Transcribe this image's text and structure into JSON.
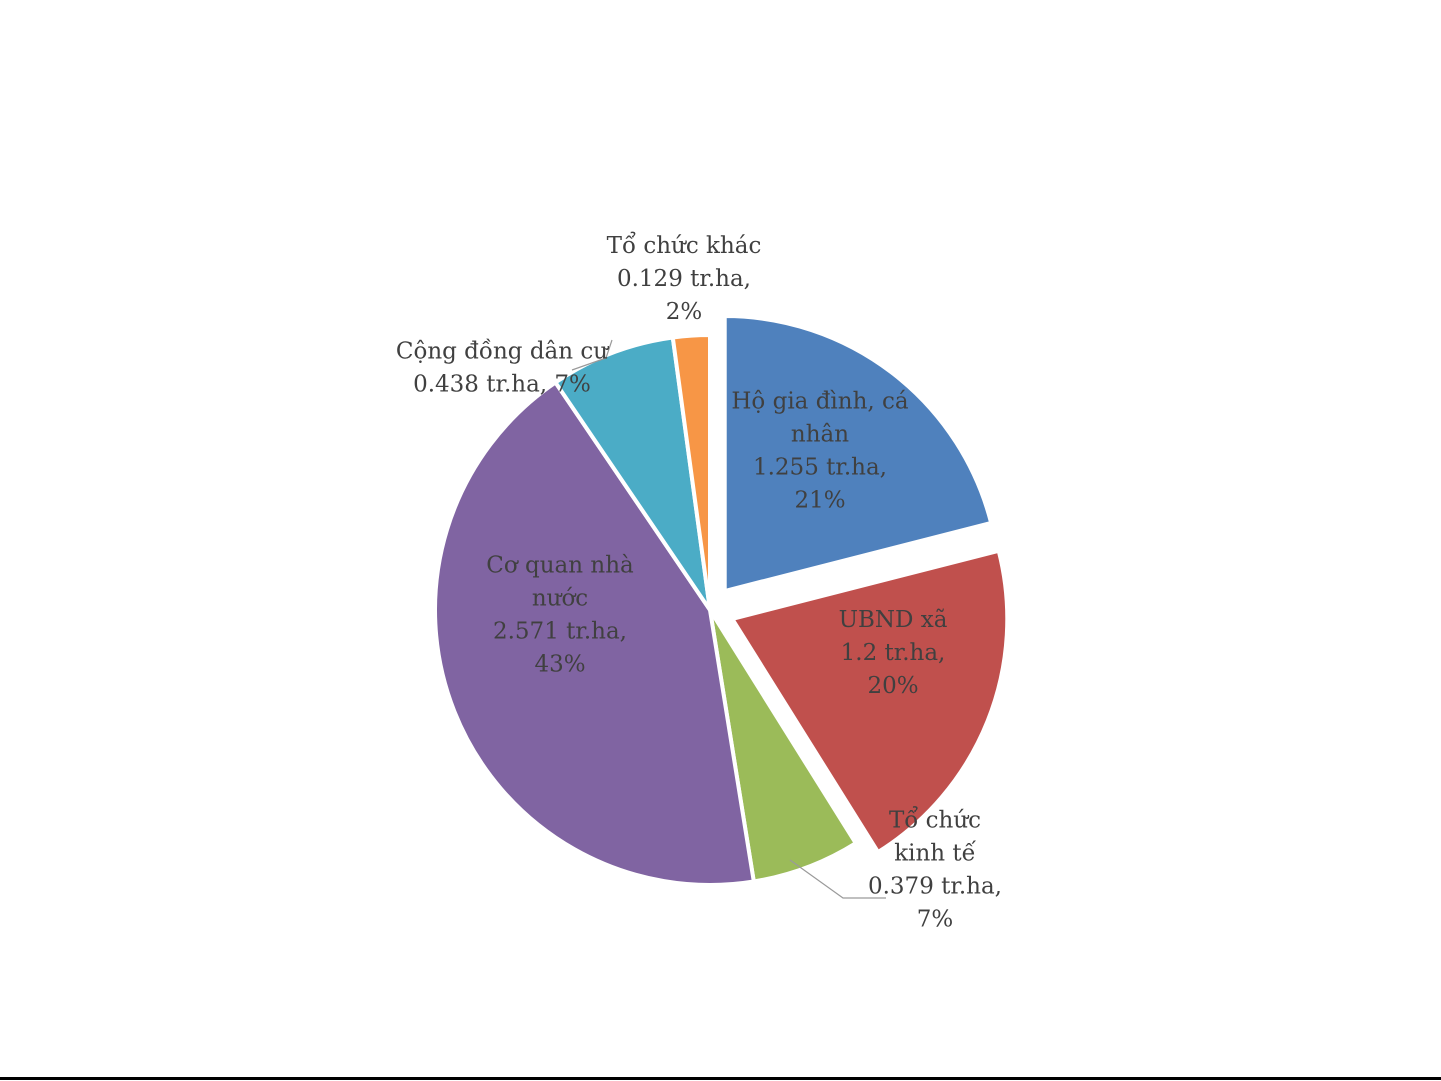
{
  "chart_data": {
    "type": "pie",
    "title": "",
    "unit": "tr.ha",
    "slices": [
      {
        "name": "Hộ gia đình, cá nhân",
        "value": 1.255,
        "percent": "21%",
        "color": "#4f81bd",
        "exploded": true,
        "label_lines": [
          "Hộ gia đình, cá",
          "nhân",
          "1.255 tr.ha,",
          "21%"
        ]
      },
      {
        "name": "UBND xã",
        "value": 1.2,
        "percent": "20%",
        "color": "#c0504d",
        "exploded": true,
        "label_lines": [
          "UBND xã",
          "1.2 tr.ha,",
          "20%"
        ]
      },
      {
        "name": "Tổ chức kinh tế",
        "value": 0.379,
        "percent": "7%",
        "color": "#9bbb59",
        "exploded": false,
        "label_lines": [
          "Tổ chức",
          "kinh tế",
          "0.379 tr.ha,",
          "7%"
        ]
      },
      {
        "name": "Cơ quan nhà nước",
        "value": 2.571,
        "percent": "43%",
        "color": "#8064a2",
        "exploded": false,
        "label_lines": [
          "Cơ quan nhà",
          "nước",
          "2.571 tr.ha,",
          "43%"
        ]
      },
      {
        "name": "Cộng đồng dân cư",
        "value": 0.438,
        "percent": "7%",
        "color": "#4bacc6",
        "exploded": false,
        "label_lines": [
          "Cộng đồng dân cư",
          "0.438 tr.ha, 7%"
        ]
      },
      {
        "name": "Tổ chức khác",
        "value": 0.129,
        "percent": "2%",
        "color": "#f79646",
        "exploded": false,
        "label_lines": [
          "Tổ chức khác",
          "0.129 tr.ha,",
          "2%"
        ]
      }
    ],
    "legend": "none"
  }
}
